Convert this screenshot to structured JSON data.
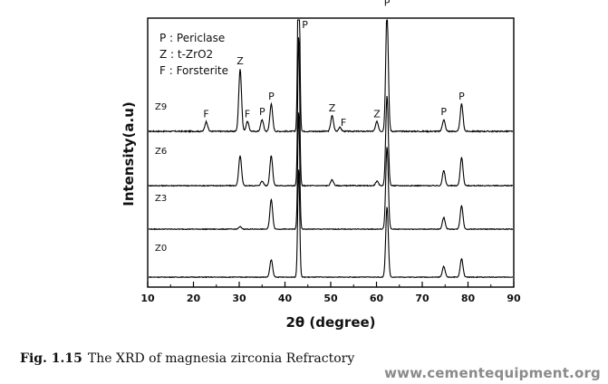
{
  "chart_data": {
    "type": "line",
    "xlabel": "2θ (degree)",
    "ylabel": "Intensity(a.u)",
    "xlim": [
      10,
      90
    ],
    "xticks": [
      10,
      20,
      30,
      40,
      50,
      60,
      70,
      80,
      90
    ],
    "legend": {
      "placement": "top-left",
      "entries": [
        "P : Periclase",
        "Z : t-ZrO2",
        "F : Forsterite"
      ]
    },
    "series": [
      {
        "name": "Z9",
        "peaks": [
          {
            "x": 22.8,
            "h": 0.05
          },
          {
            "x": 30.2,
            "h": 0.32
          },
          {
            "x": 31.8,
            "h": 0.05
          },
          {
            "x": 35.0,
            "h": 0.06
          },
          {
            "x": 37.0,
            "h": 0.14
          },
          {
            "x": 43.0,
            "h": 1.0
          },
          {
            "x": 50.3,
            "h": 0.08
          },
          {
            "x": 52.0,
            "h": 0.02
          },
          {
            "x": 60.1,
            "h": 0.05
          },
          {
            "x": 62.3,
            "h": 0.62
          },
          {
            "x": 74.7,
            "h": 0.06
          },
          {
            "x": 78.6,
            "h": 0.14
          }
        ]
      },
      {
        "name": "Z6",
        "peaks": [
          {
            "x": 30.2,
            "h": 0.2
          },
          {
            "x": 35.0,
            "h": 0.03
          },
          {
            "x": 37.0,
            "h": 0.2
          },
          {
            "x": 43.0,
            "h": 1.0
          },
          {
            "x": 50.3,
            "h": 0.04
          },
          {
            "x": 60.1,
            "h": 0.03
          },
          {
            "x": 62.3,
            "h": 0.6
          },
          {
            "x": 74.7,
            "h": 0.1
          },
          {
            "x": 78.6,
            "h": 0.19
          }
        ]
      },
      {
        "name": "Z3",
        "peaks": [
          {
            "x": 30.2,
            "h": 0.02
          },
          {
            "x": 37.0,
            "h": 0.25
          },
          {
            "x": 43.0,
            "h": 1.0
          },
          {
            "x": 62.3,
            "h": 0.7
          },
          {
            "x": 74.7,
            "h": 0.1
          },
          {
            "x": 78.6,
            "h": 0.2
          }
        ]
      },
      {
        "name": "Z0",
        "peaks": [
          {
            "x": 37.0,
            "h": 0.16
          },
          {
            "x": 43.0,
            "h": 1.0
          },
          {
            "x": 62.3,
            "h": 0.65
          },
          {
            "x": 74.7,
            "h": 0.1
          },
          {
            "x": 78.6,
            "h": 0.17
          }
        ]
      }
    ],
    "annotations": [
      {
        "text": "P",
        "x": 43.0,
        "series": "top"
      },
      {
        "text": "F",
        "x": 22.8,
        "series": "Z9"
      },
      {
        "text": "Z",
        "x": 30.2,
        "series": "Z9"
      },
      {
        "text": "F",
        "x": 31.8,
        "series": "Z9"
      },
      {
        "text": "P",
        "x": 35.0,
        "series": "Z9"
      },
      {
        "text": "P",
        "x": 37.0,
        "series": "Z9"
      },
      {
        "text": "Z",
        "x": 50.3,
        "series": "Z9"
      },
      {
        "text": "F",
        "x": 52.0,
        "series": "Z9"
      },
      {
        "text": "Z",
        "x": 60.1,
        "series": "Z9"
      },
      {
        "text": "P",
        "x": 62.3,
        "series": "Z9"
      },
      {
        "text": "P",
        "x": 74.7,
        "series": "Z9"
      },
      {
        "text": "P",
        "x": 78.6,
        "series": "Z9"
      }
    ],
    "grid": false
  },
  "caption": {
    "label": "Fig. 1.15",
    "text": "The XRD of magnesia zirconia Refractory"
  },
  "watermark": "www.cementequipment.org"
}
